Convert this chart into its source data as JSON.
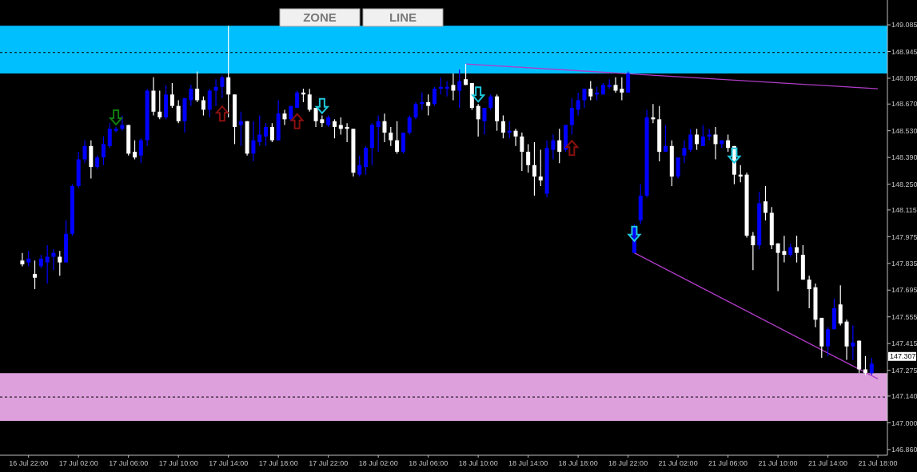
{
  "chart_data": {
    "type": "candlestick",
    "categories": [
      null,
      "16 Jul 22:00",
      null,
      null,
      null,
      null,
      null,
      null,
      null,
      "17 Jul 02:00",
      null,
      null,
      null,
      null,
      null,
      null,
      null,
      "17 Jul 06:00",
      null,
      null,
      null,
      null,
      null,
      null,
      null,
      "17 Jul 10:00",
      null,
      null,
      null,
      null,
      null,
      null,
      null,
      "17 Jul 14:00",
      null,
      null,
      null,
      null,
      null,
      null,
      null,
      "17 Jul 18:00",
      null,
      null,
      null,
      null,
      null,
      null,
      null,
      "17 Jul 22:00",
      null,
      null,
      null,
      null,
      null,
      null,
      null,
      "18 Jul 02:00",
      null,
      null,
      null,
      null,
      null,
      null,
      null,
      "18 Jul 06:00",
      null,
      null,
      null,
      null,
      null,
      null,
      null,
      "18 Jul 10:00",
      null,
      null,
      null,
      null,
      null,
      null,
      null,
      "18 Jul 14:00",
      null,
      null,
      null,
      null,
      null,
      null,
      null,
      "18 Jul 18:00",
      null,
      null,
      null,
      null,
      null,
      null,
      null,
      "18 Jul 22:00",
      null,
      null,
      null,
      null,
      null,
      null,
      null,
      "21 Jul 02:00",
      null,
      null,
      null,
      null,
      null,
      null,
      null,
      "21 Jul 06:00",
      null,
      null,
      null,
      null,
      null,
      null,
      null,
      "21 Jul 10:00",
      null,
      null,
      null,
      null,
      null,
      null,
      null,
      "21 Jul 14:00",
      null,
      null,
      null,
      null,
      null,
      null,
      null,
      "21 Jul 18:00"
    ],
    "ohlc": [
      [
        147.85,
        147.89,
        147.82,
        147.83
      ],
      [
        147.84,
        147.9,
        147.82,
        147.86
      ],
      [
        147.78,
        147.85,
        147.7,
        147.76
      ],
      [
        147.82,
        147.88,
        147.81,
        147.86
      ],
      [
        147.84,
        147.93,
        147.73,
        147.87
      ],
      [
        147.87,
        147.91,
        147.8,
        147.89
      ],
      [
        147.87,
        147.9,
        147.77,
        147.84
      ],
      [
        147.84,
        148.06,
        147.84,
        147.99
      ],
      [
        147.99,
        148.25,
        147.98,
        148.24
      ],
      [
        148.24,
        148.42,
        148.23,
        148.38
      ],
      [
        148.38,
        148.48,
        148.36,
        148.45
      ],
      [
        148.45,
        148.48,
        148.28,
        148.34
      ],
      [
        148.34,
        148.4,
        148.33,
        148.39
      ],
      [
        148.39,
        148.5,
        148.35,
        148.46
      ],
      [
        148.45,
        148.57,
        148.44,
        148.54
      ],
      [
        148.53,
        148.55,
        148.52,
        148.54
      ],
      [
        148.54,
        148.61,
        148.53,
        148.56
      ],
      [
        148.56,
        148.56,
        148.4,
        148.41
      ],
      [
        148.42,
        148.48,
        148.38,
        148.39
      ],
      [
        148.4,
        148.49,
        148.36,
        148.48
      ],
      [
        148.48,
        148.75,
        148.45,
        148.74
      ],
      [
        148.74,
        148.81,
        148.61,
        148.63
      ],
      [
        148.63,
        148.74,
        148.59,
        148.6
      ],
      [
        148.6,
        148.77,
        148.59,
        148.72
      ],
      [
        148.72,
        148.78,
        148.65,
        148.66
      ],
      [
        148.66,
        148.69,
        148.57,
        148.58
      ],
      [
        148.58,
        148.7,
        148.52,
        148.7
      ],
      [
        148.69,
        148.77,
        148.66,
        148.75
      ],
      [
        148.75,
        148.84,
        148.68,
        148.69
      ],
      [
        148.69,
        148.71,
        148.61,
        148.64
      ],
      [
        148.64,
        148.75,
        148.6,
        148.74
      ],
      [
        148.74,
        148.8,
        148.66,
        148.76
      ],
      [
        148.76,
        148.82,
        148.7,
        148.81
      ],
      [
        148.81,
        149.08,
        148.6,
        148.72
      ],
      [
        148.72,
        148.72,
        148.46,
        148.55
      ],
      [
        148.56,
        148.63,
        148.45,
        148.58
      ],
      [
        148.58,
        148.58,
        148.4,
        148.41
      ],
      [
        148.41,
        148.58,
        148.37,
        148.48
      ],
      [
        148.47,
        148.61,
        148.45,
        148.51
      ],
      [
        148.5,
        148.57,
        148.45,
        148.55
      ],
      [
        148.55,
        148.57,
        148.47,
        148.48
      ],
      [
        148.48,
        148.69,
        148.48,
        148.62
      ],
      [
        148.62,
        148.64,
        148.56,
        148.59
      ],
      [
        148.59,
        148.66,
        148.58,
        148.66
      ],
      [
        148.65,
        148.74,
        148.65,
        148.73
      ],
      [
        148.73,
        148.75,
        148.68,
        148.72
      ],
      [
        148.72,
        148.75,
        148.63,
        148.64
      ],
      [
        148.65,
        148.65,
        148.55,
        148.58
      ],
      [
        148.59,
        148.61,
        148.55,
        148.57
      ],
      [
        148.56,
        148.61,
        148.55,
        148.6
      ],
      [
        148.58,
        148.59,
        148.49,
        148.55
      ],
      [
        148.56,
        148.6,
        148.51,
        148.54
      ],
      [
        148.55,
        148.57,
        148.47,
        148.54
      ],
      [
        148.54,
        148.54,
        148.29,
        148.31
      ],
      [
        148.3,
        148.4,
        148.29,
        148.35
      ],
      [
        148.34,
        148.45,
        148.3,
        148.44
      ],
      [
        148.44,
        148.57,
        148.35,
        148.56
      ],
      [
        148.55,
        148.61,
        148.42,
        148.58
      ],
      [
        148.58,
        148.62,
        148.47,
        148.52
      ],
      [
        148.52,
        148.55,
        148.45,
        148.48
      ],
      [
        148.48,
        148.58,
        148.41,
        148.42
      ],
      [
        148.42,
        148.52,
        148.41,
        148.52
      ],
      [
        148.52,
        148.61,
        148.51,
        148.6
      ],
      [
        148.6,
        148.68,
        148.59,
        148.67
      ],
      [
        148.67,
        148.73,
        148.64,
        148.68
      ],
      [
        148.68,
        148.72,
        148.61,
        148.66
      ],
      [
        148.67,
        148.76,
        148.66,
        148.75
      ],
      [
        148.75,
        148.81,
        148.72,
        148.76
      ],
      [
        148.75,
        148.79,
        148.71,
        148.76
      ],
      [
        148.77,
        148.83,
        148.69,
        148.74
      ],
      [
        148.74,
        148.85,
        148.65,
        148.79
      ],
      [
        148.8,
        148.88,
        148.77,
        148.77
      ],
      [
        148.78,
        148.78,
        148.64,
        148.65
      ],
      [
        148.66,
        148.67,
        148.5,
        148.59
      ],
      [
        148.58,
        148.65,
        148.51,
        148.65
      ],
      [
        148.65,
        148.72,
        148.64,
        148.71
      ],
      [
        148.71,
        148.72,
        148.53,
        148.58
      ],
      [
        148.58,
        148.61,
        148.49,
        148.52
      ],
      [
        148.52,
        148.58,
        148.49,
        148.53
      ],
      [
        148.53,
        148.54,
        148.45,
        148.5
      ],
      [
        148.5,
        148.52,
        148.32,
        148.42
      ],
      [
        148.42,
        148.46,
        148.31,
        148.35
      ],
      [
        148.35,
        148.47,
        148.19,
        148.29
      ],
      [
        148.29,
        148.43,
        148.24,
        148.27
      ],
      [
        148.2,
        148.48,
        148.18,
        148.44
      ],
      [
        148.43,
        148.51,
        148.38,
        148.48
      ],
      [
        148.48,
        148.54,
        148.36,
        148.42
      ],
      [
        148.43,
        148.56,
        148.42,
        148.56
      ],
      [
        148.56,
        148.7,
        148.51,
        148.65
      ],
      [
        148.64,
        148.73,
        148.61,
        148.69
      ],
      [
        148.69,
        148.75,
        148.65,
        148.75
      ],
      [
        148.75,
        148.79,
        148.69,
        148.71
      ],
      [
        148.72,
        148.76,
        148.69,
        148.73
      ],
      [
        148.72,
        148.78,
        148.72,
        148.77
      ],
      [
        148.76,
        148.8,
        148.75,
        148.77
      ],
      [
        148.77,
        148.81,
        148.73,
        148.74
      ],
      [
        148.75,
        148.81,
        148.69,
        148.73
      ],
      [
        148.73,
        148.84,
        148.73,
        148.83
      ],
      [
        147.89,
        148.04,
        147.89,
        148.03
      ],
      [
        148.06,
        148.25,
        148.04,
        148.19
      ],
      [
        148.19,
        148.64,
        148.18,
        148.6
      ],
      [
        148.6,
        148.67,
        148.57,
        148.59
      ],
      [
        148.59,
        148.66,
        148.37,
        148.42
      ],
      [
        148.42,
        148.56,
        148.42,
        148.45
      ],
      [
        148.45,
        148.48,
        148.24,
        148.29
      ],
      [
        148.29,
        148.39,
        148.28,
        148.39
      ],
      [
        148.4,
        148.48,
        148.36,
        148.44
      ],
      [
        148.43,
        148.54,
        148.42,
        148.51
      ],
      [
        148.51,
        148.54,
        148.43,
        148.46
      ],
      [
        148.45,
        148.56,
        148.45,
        148.5
      ],
      [
        148.5,
        148.54,
        148.48,
        148.51
      ],
      [
        148.51,
        148.55,
        148.38,
        148.46
      ],
      [
        148.46,
        148.48,
        148.44,
        148.48
      ],
      [
        148.48,
        148.51,
        148.42,
        148.44
      ],
      [
        148.45,
        148.45,
        148.25,
        148.3
      ],
      [
        148.3,
        148.35,
        148.26,
        148.29
      ],
      [
        148.3,
        148.31,
        147.97,
        147.98
      ],
      [
        147.98,
        148.0,
        147.8,
        147.93
      ],
      [
        147.93,
        148.21,
        147.91,
        148.15
      ],
      [
        148.16,
        148.24,
        148.06,
        148.1
      ],
      [
        148.1,
        148.13,
        147.91,
        147.93
      ],
      [
        147.94,
        147.94,
        147.69,
        147.89
      ],
      [
        147.9,
        147.98,
        147.84,
        147.88
      ],
      [
        147.88,
        147.94,
        147.87,
        147.92
      ],
      [
        147.92,
        147.98,
        147.84,
        147.89
      ],
      [
        147.88,
        147.93,
        147.75,
        147.75
      ],
      [
        147.75,
        147.77,
        147.6,
        147.7
      ],
      [
        147.71,
        147.73,
        147.5,
        147.54
      ],
      [
        147.55,
        147.55,
        147.34,
        147.4
      ],
      [
        147.4,
        147.5,
        147.35,
        147.49
      ],
      [
        147.49,
        147.65,
        147.49,
        147.6
      ],
      [
        147.62,
        147.72,
        147.51,
        147.52
      ],
      [
        147.53,
        147.54,
        147.33,
        147.4
      ],
      [
        147.4,
        147.51,
        147.33,
        147.42
      ],
      [
        147.43,
        147.43,
        147.26,
        147.28
      ],
      [
        147.28,
        147.35,
        147.25,
        147.26
      ],
      [
        147.26,
        147.34,
        147.25,
        147.31
      ],
      null
    ],
    "colors": [
      "#ffffff",
      "#0000ff",
      "#ffffff",
      "#0000ff",
      "#0000ff",
      "#0000ff",
      "#ffffff",
      "#0000ff",
      "#0000ff",
      "#0000ff",
      "#0000ff",
      "#ffffff",
      "#0000ff",
      "#0000ff",
      "#0000ff",
      "#0000ff",
      "#0000ff",
      "#ffffff",
      "#ffffff",
      "#0000ff",
      "#0000ff",
      "#ffffff",
      "#ffffff",
      "#0000ff",
      "#ffffff",
      "#ffffff",
      "#0000ff",
      "#0000ff",
      "#ffffff",
      "#ffffff",
      "#0000ff",
      "#0000ff",
      "#0000ff",
      "#ffffff",
      "#ffffff",
      "#0000ff",
      "#ffffff",
      "#0000ff",
      "#0000ff",
      "#0000ff",
      "#ffffff",
      "#0000ff",
      "#ffffff",
      "#0000ff",
      "#0000ff",
      "#ffffff",
      "#ffffff",
      "#ffffff",
      "#ffffff",
      "#0000ff",
      "#ffffff",
      "#ffffff",
      "#ffffff",
      "#ffffff",
      "#0000ff",
      "#0000ff",
      "#0000ff",
      "#0000ff",
      "#ffffff",
      "#ffffff",
      "#ffffff",
      "#0000ff",
      "#0000ff",
      "#0000ff",
      "#0000ff",
      "#ffffff",
      "#0000ff",
      "#0000ff",
      "#0000ff",
      "#ffffff",
      "#0000ff",
      "#ffffff",
      "#ffffff",
      "#ffffff",
      "#0000ff",
      "#0000ff",
      "#ffffff",
      "#ffffff",
      "#0000ff",
      "#ffffff",
      "#ffffff",
      "#ffffff",
      "#ffffff",
      "#ffffff",
      "#0000ff",
      "#0000ff",
      "#ffffff",
      "#0000ff",
      "#0000ff",
      "#0000ff",
      "#0000ff",
      "#ffffff",
      "#0000ff",
      "#0000ff",
      "#0000ff",
      "#ffffff",
      "#ffffff",
      "#0000ff",
      "#0000ff",
      "#0000ff",
      "#0000ff",
      "#ffffff",
      "#ffffff",
      "#0000ff",
      "#ffffff",
      "#0000ff",
      "#0000ff",
      "#0000ff",
      "#ffffff",
      "#0000ff",
      "#0000ff",
      "#ffffff",
      "#0000ff",
      "#ffffff",
      "#ffffff",
      "#ffffff",
      "#ffffff",
      "#ffffff",
      "#0000ff",
      "#ffffff",
      "#ffffff",
      "#ffffff",
      "#ffffff",
      "#0000ff",
      "#ffffff",
      "#ffffff",
      "#ffffff",
      "#ffffff",
      "#ffffff",
      "#0000ff",
      "#0000ff",
      "#ffffff",
      "#ffffff",
      "#0000ff",
      "#ffffff",
      "#ffffff",
      "#0000ff",
      null
    ],
    "series": [
      {
        "type": "line",
        "color": "#b03cc8",
        "values": [
          null,
          null,
          null,
          null,
          null,
          null,
          null,
          null,
          null,
          null,
          null,
          null,
          null,
          null,
          null,
          null,
          null,
          null,
          null,
          null,
          null,
          null,
          null,
          null,
          null,
          null,
          null,
          null,
          null,
          null,
          null,
          null,
          null,
          null,
          null,
          null,
          null,
          null,
          null,
          null,
          null,
          null,
          null,
          null,
          null,
          null,
          null,
          null,
          null,
          null,
          null,
          null,
          null,
          null,
          null,
          null,
          null,
          null,
          null,
          null,
          null,
          null,
          null,
          null,
          null,
          null,
          null,
          null,
          null,
          null,
          null,
          148.88,
          null,
          null,
          null,
          null,
          null,
          null,
          null,
          null,
          null,
          null,
          null,
          null,
          null,
          null,
          null,
          null,
          null,
          null,
          null,
          null,
          null,
          null,
          null,
          null,
          null,
          null,
          null,
          null,
          null,
          null,
          null,
          null,
          null,
          null,
          null,
          null,
          null,
          null,
          null,
          null,
          null,
          null,
          null,
          null,
          null,
          null,
          null,
          null,
          null,
          null,
          null,
          null,
          null,
          null,
          null,
          null,
          null,
          null,
          null,
          null,
          null,
          null,
          null,
          null,
          null,
          148.75
        ]
      },
      {
        "type": "line",
        "color": "#b03cc8",
        "values": [
          null,
          null,
          null,
          null,
          null,
          null,
          null,
          null,
          null,
          null,
          null,
          null,
          null,
          null,
          null,
          null,
          null,
          null,
          null,
          null,
          null,
          null,
          null,
          null,
          null,
          null,
          null,
          null,
          null,
          null,
          null,
          null,
          null,
          null,
          null,
          null,
          null,
          null,
          null,
          null,
          null,
          null,
          null,
          null,
          null,
          null,
          null,
          null,
          null,
          null,
          null,
          null,
          null,
          null,
          null,
          null,
          null,
          null,
          null,
          null,
          null,
          null,
          null,
          null,
          null,
          null,
          null,
          null,
          null,
          null,
          null,
          null,
          null,
          null,
          null,
          null,
          null,
          null,
          null,
          null,
          null,
          null,
          null,
          null,
          null,
          null,
          null,
          null,
          null,
          null,
          null,
          null,
          null,
          null,
          null,
          null,
          null,
          null,
          147.89,
          null,
          null,
          null,
          null,
          null,
          null,
          null,
          null,
          null,
          null,
          null,
          null,
          null,
          null,
          null,
          null,
          null,
          null,
          null,
          null,
          null,
          null,
          null,
          null,
          null,
          null,
          null,
          null,
          null,
          null,
          null,
          null,
          null,
          null,
          null,
          null,
          null,
          null,
          147.23
        ]
      },
      {
        "type": "scatter",
        "color": "#8b1010",
        "values": [
          null,
          null,
          null,
          null,
          null,
          null,
          null,
          null,
          null,
          null,
          null,
          null,
          null,
          null,
          null,
          null,
          null,
          null,
          null,
          null,
          null,
          null,
          null,
          null,
          null,
          null,
          null,
          null,
          null,
          null,
          null,
          null,
          148.62,
          null,
          null,
          null,
          null,
          null,
          null,
          null,
          null,
          null,
          null,
          null,
          148.58,
          null,
          null,
          null,
          null,
          null,
          null,
          null,
          null,
          null,
          null,
          null,
          null,
          null,
          null,
          null,
          null,
          null,
          null,
          null,
          null,
          null,
          null,
          null,
          null,
          null,
          null,
          null,
          null,
          null,
          null,
          null,
          null,
          null,
          null,
          null,
          null,
          null,
          null,
          null,
          null,
          null,
          null,
          null,
          148.44,
          null,
          null,
          null,
          null,
          null,
          null,
          null,
          null,
          null,
          null,
          null,
          null,
          null,
          null,
          null,
          null,
          null,
          null,
          null,
          null,
          null,
          null,
          null,
          null,
          null,
          null,
          null,
          null,
          null,
          null,
          null,
          null,
          null,
          null,
          null,
          null,
          null,
          null,
          null,
          null,
          null,
          null,
          null,
          null,
          null,
          null,
          null,
          null,
          null
        ]
      },
      {
        "type": "scatter",
        "color": "#20c8dc",
        "values": [
          null,
          null,
          null,
          null,
          null,
          null,
          null,
          null,
          null,
          null,
          null,
          null,
          null,
          null,
          null,
          null,
          null,
          null,
          null,
          null,
          null,
          null,
          null,
          null,
          null,
          null,
          null,
          null,
          null,
          null,
          null,
          null,
          null,
          null,
          null,
          null,
          null,
          null,
          null,
          null,
          null,
          null,
          null,
          null,
          null,
          null,
          null,
          null,
          148.66,
          null,
          null,
          null,
          null,
          null,
          null,
          null,
          null,
          null,
          null,
          null,
          null,
          null,
          null,
          null,
          null,
          null,
          null,
          null,
          null,
          null,
          null,
          null,
          null,
          148.72,
          null,
          null,
          null,
          null,
          null,
          null,
          null,
          null,
          null,
          null,
          null,
          null,
          null,
          null,
          null,
          null,
          null,
          null,
          null,
          null,
          null,
          null,
          null,
          null,
          147.99,
          null,
          null,
          null,
          null,
          null,
          null,
          null,
          null,
          null,
          null,
          null,
          null,
          null,
          null,
          null,
          148.4,
          null,
          null,
          null,
          null,
          null,
          null,
          null,
          null,
          null,
          null,
          null,
          null,
          null,
          null,
          null,
          null,
          null,
          null,
          null,
          null,
          null,
          null,
          null
        ]
      },
      {
        "type": "scatter",
        "color": "#107a10",
        "values": [
          null,
          null,
          null,
          null,
          null,
          null,
          null,
          null,
          null,
          null,
          null,
          null,
          null,
          null,
          null,
          148.6,
          null,
          null,
          null,
          null,
          null,
          null,
          null,
          null,
          null,
          null,
          null,
          null,
          null,
          null,
          null,
          null,
          null,
          null,
          null,
          null,
          null,
          null,
          null,
          null,
          null,
          null,
          null,
          null,
          null,
          null,
          null,
          null,
          null,
          null,
          null,
          null,
          null,
          null,
          null,
          null,
          null,
          null,
          null,
          null,
          null,
          null,
          null,
          null,
          null,
          null,
          null,
          null,
          null,
          null,
          null,
          null,
          null,
          null,
          null,
          null,
          null,
          null,
          null,
          null,
          null,
          null,
          null,
          null,
          null,
          null,
          null,
          null,
          null,
          null,
          null,
          null,
          null,
          null,
          null,
          null,
          null,
          null,
          null,
          null,
          null,
          null,
          null,
          null,
          null,
          null,
          null,
          null,
          null,
          null,
          null,
          null,
          null,
          null,
          null,
          null,
          null,
          null,
          null,
          null,
          null,
          null,
          null,
          null,
          null,
          null,
          null,
          null,
          null,
          null,
          null,
          null,
          null,
          null,
          null,
          null,
          null,
          null
        ]
      }
    ],
    "ylim": [
      146.83,
      149.215
    ],
    "yticks": [
      149.085,
      148.945,
      148.805,
      {
        "value": 148.67,
        "label": "148.670"
      },
      {
        "value": 148.53,
        "label": "148.530"
      },
      {
        "value": 148.39,
        "label": "148.390"
      },
      {
        "value": 148.25,
        "label": "148.250"
      },
      148.115,
      147.975,
      147.835,
      147.695,
      147.555,
      147.415,
      147.275,
      {
        "value": 147.14,
        "label": "147.140"
      },
      {
        "value": 147.0,
        "label": "147.000"
      },
      {
        "value": 146.86,
        "label": "146.860"
      }
    ],
    "bands": [
      {
        "axis": "y",
        "from": 148.83,
        "to": 149.08,
        "color": "#00bfff"
      },
      {
        "axis": "y",
        "from": 147.01,
        "to": 147.26,
        "color": "#dda0dd"
      }
    ],
    "ref_lines": [
      {
        "axis": "y",
        "value": 148.94,
        "color": "#000000",
        "line_style": "dashed"
      },
      {
        "axis": "y",
        "value": 147.135,
        "color": "#000000",
        "line_style": "dashed"
      }
    ],
    "annotations": [
      "ZONE",
      "LINE",
      "147.307"
    ]
  }
}
